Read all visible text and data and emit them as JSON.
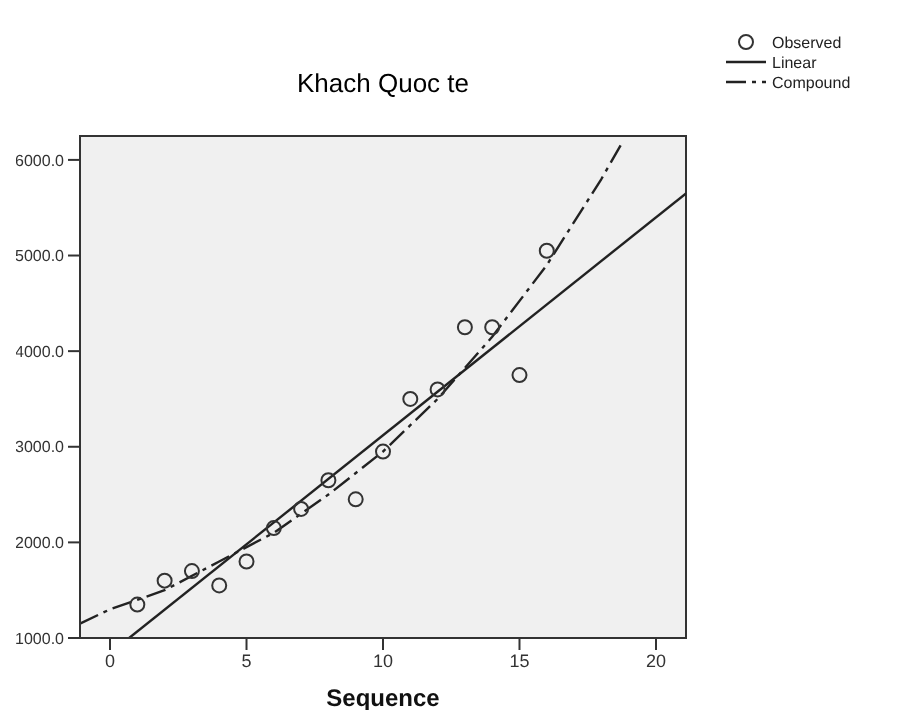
{
  "chart_data": {
    "type": "scatter",
    "title": "Khach Quoc te",
    "xlabel": "Sequence",
    "xlim": [
      -1.1,
      21.1
    ],
    "xticks": [
      0,
      5,
      10,
      15,
      20
    ],
    "ylim": [
      1000,
      6250
    ],
    "yticks": [
      {
        "value": 1000,
        "label": "1000.0"
      },
      {
        "value": 2000,
        "label": "2000.0"
      },
      {
        "value": 3000,
        "label": "3000.0"
      },
      {
        "value": 4000,
        "label": "4000.0"
      },
      {
        "value": 5000,
        "label": "5000.0"
      },
      {
        "value": 6000,
        "label": "6000.0"
      }
    ],
    "legend": "top right",
    "series": [
      {
        "name": "Observed",
        "color": "#333333",
        "marker": "circle",
        "x": [
          1,
          2,
          3,
          4,
          5,
          6,
          7,
          8,
          9,
          10,
          11,
          12,
          13,
          14,
          15,
          16
        ],
        "values": [
          1350,
          1600,
          1700,
          1550,
          1800,
          2150,
          2350,
          2650,
          2450,
          2950,
          3500,
          3600,
          4250,
          4250,
          3750,
          5050
        ]
      },
      {
        "name": "Linear",
        "type": "line",
        "color": "#222222",
        "line_style": "solid",
        "marker": "none",
        "x": [
          0.7,
          21.1
        ],
        "values": [
          1000,
          5650
        ]
      },
      {
        "name": "Compound",
        "type": "line",
        "color": "#222222",
        "line_style": "dashed",
        "marker": "none",
        "x": [
          -1.1,
          0,
          2,
          4,
          6,
          8,
          10,
          12,
          14,
          16,
          18,
          18.8
        ],
        "values": [
          1150,
          1300,
          1500,
          1800,
          2100,
          2500,
          2950,
          3500,
          4150,
          4900,
          5800,
          6200
        ]
      }
    ]
  }
}
